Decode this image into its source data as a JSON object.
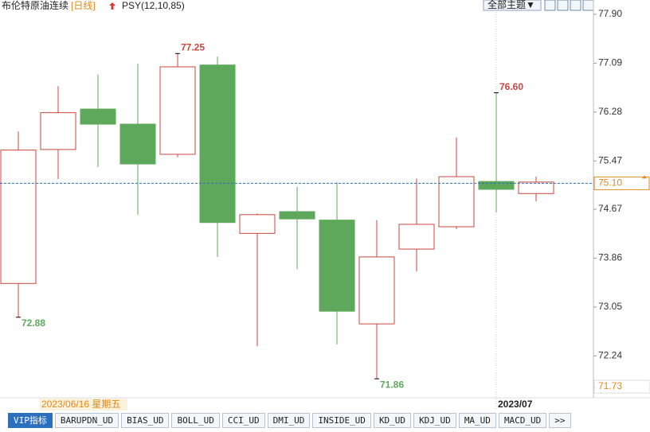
{
  "header": {
    "title": "布伦特原油连续",
    "period": "[日线]",
    "indicator": "PSY(12,10,85)",
    "theme_button": "全部主题▼"
  },
  "chart_data": {
    "type": "candlestick",
    "open": [
      73.44,
      75.66,
      76.33,
      76.08,
      75.58,
      77.06,
      74.27,
      74.63,
      74.49,
      72.77,
      74.01,
      74.38,
      75.13,
      74.93
    ],
    "high": [
      75.96,
      76.71,
      76.9,
      77.08,
      77.25,
      77.2,
      74.6,
      75.04,
      75.12,
      74.49,
      75.18,
      75.86,
      76.6,
      75.21
    ],
    "low": [
      72.88,
      75.17,
      75.37,
      74.58,
      75.53,
      73.88,
      72.4,
      73.68,
      72.43,
      71.86,
      73.64,
      74.34,
      74.62,
      74.8
    ],
    "close": [
      75.65,
      76.27,
      76.08,
      75.42,
      77.03,
      74.45,
      74.58,
      74.51,
      72.98,
      73.88,
      74.42,
      75.21,
      75.0,
      75.12
    ],
    "up_color": "#c8473f",
    "down_color": "#5ea85b",
    "ylim": [
      71.73,
      77.9
    ],
    "yticks": [
      {
        "value": 77.9,
        "label": "77.90"
      },
      77.09,
      76.28,
      75.47,
      74.67,
      73.86,
      73.05,
      72.24
    ],
    "last_price": {
      "value": 75.1,
      "label": "75.10"
    },
    "extreme_labels": [
      {
        "candle": 0,
        "kind": "low",
        "label": "72.88"
      },
      {
        "candle": 4,
        "kind": "high",
        "label": "77.25"
      },
      {
        "candle": 9,
        "kind": "low",
        "label": "71.86"
      },
      {
        "candle": 12,
        "kind": "high",
        "label": "76.60"
      }
    ],
    "date_labels": [
      {
        "candle": 1,
        "label": "2023/06/16 星期五"
      },
      {
        "candle": 12,
        "label": "2023/07"
      }
    ]
  },
  "tabs": [
    "VIP指标",
    "BARUPDN_UD",
    "BIAS_UD",
    "BOLL_UD",
    "CCI_UD",
    "DMI_UD",
    "INSIDE_UD",
    "KD_UD",
    "KDJ_UD",
    "MA_UD",
    "MACD_UD",
    ">>"
  ]
}
